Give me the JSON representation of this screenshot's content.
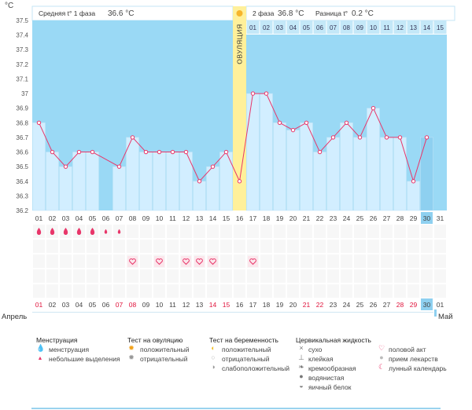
{
  "chart_data": {
    "type": "line",
    "unit_label": "°C",
    "y_ticks": [
      "36.2",
      "36.3",
      "36.4",
      "36.5",
      "36.6",
      "36.7",
      "36.8",
      "36.9",
      "37",
      "37.1",
      "37.2",
      "37.3",
      "37.4",
      "37.5"
    ],
    "ylim": [
      36.2,
      37.5
    ],
    "days": [
      "01",
      "02",
      "03",
      "04",
      "05",
      "06",
      "07",
      "08",
      "09",
      "10",
      "11",
      "12",
      "13",
      "14",
      "15",
      "16",
      "17",
      "18",
      "19",
      "20",
      "21",
      "22",
      "23",
      "24",
      "25",
      "26",
      "27",
      "28",
      "29",
      "30",
      "31"
    ],
    "temperatures": [
      36.8,
      36.6,
      36.5,
      36.6,
      36.6,
      null,
      36.5,
      36.7,
      36.6,
      36.6,
      36.6,
      36.6,
      36.4,
      36.5,
      36.6,
      36.4,
      37.0,
      37.0,
      36.8,
      36.75,
      36.8,
      36.6,
      36.7,
      36.8,
      36.7,
      36.9,
      36.7,
      36.7,
      36.4,
      36.7,
      null
    ],
    "dashed_segments": [
      [
        5,
        7
      ]
    ],
    "phase2_days": [
      "01",
      "02",
      "03",
      "04",
      "05",
      "06",
      "07",
      "08",
      "09",
      "10",
      "11",
      "12",
      "13",
      "14",
      "15"
    ],
    "ovulation_day": "16",
    "ovulation_label": "ОВУЛЯЦИЯ",
    "phase1_label": "Средняя t° 1 фаза",
    "phase1_value": "36.6 °C",
    "phase2_label": "2 фаза",
    "phase2_value": "36.8 °C",
    "diff_label": "Разница t°",
    "diff_value": "0.2 °C",
    "current_day": "30",
    "red_days_bottom": [
      "01",
      "07",
      "08",
      "14",
      "15",
      "21",
      "22",
      "28",
      "29"
    ],
    "month_start": "Апрель",
    "month_end": "Май",
    "bottom_days": [
      "01",
      "02",
      "03",
      "04",
      "05",
      "06",
      "07",
      "08",
      "09",
      "10",
      "11",
      "12",
      "13",
      "14",
      "15",
      "16",
      "17",
      "18",
      "19",
      "20",
      "21",
      "22",
      "23",
      "24",
      "25",
      "26",
      "27",
      "28",
      "29",
      "30",
      "01"
    ],
    "menstruation": [
      "heavy",
      "heavy",
      "heavy",
      "heavy",
      "heavy",
      "light",
      "light"
    ],
    "intercourse_days": [
      "08",
      "10",
      "12",
      "13",
      "14",
      "17"
    ]
  },
  "legend": {
    "menstruation": {
      "title": "Менструация",
      "items": [
        "менструация",
        "небольшие выделения"
      ]
    },
    "ovulation_test": {
      "title": "Тест на овуляцию",
      "items": [
        "положительный",
        "отрицательный"
      ]
    },
    "pregnancy_test": {
      "title": "Тест на беременность",
      "items": [
        "положительный",
        "отрицательный",
        "слабоположительный"
      ]
    },
    "cervical": {
      "title": "Цервикальная жидкость",
      "items": [
        "сухо",
        "клейкая",
        "кремообразная",
        "водянистая",
        "яичный белок"
      ]
    },
    "other": {
      "items": [
        "половой акт",
        "прием лекарств",
        "лунный календарь"
      ]
    }
  },
  "colors": {
    "phase_bg": "#9ad9f5",
    "bar_fill": "#d2eeff",
    "bar_current": "#8ed0f0",
    "line": "#e8366a",
    "ovulation": "#fff09a",
    "grid_text": "#555",
    "red_text": "#e0143c"
  }
}
